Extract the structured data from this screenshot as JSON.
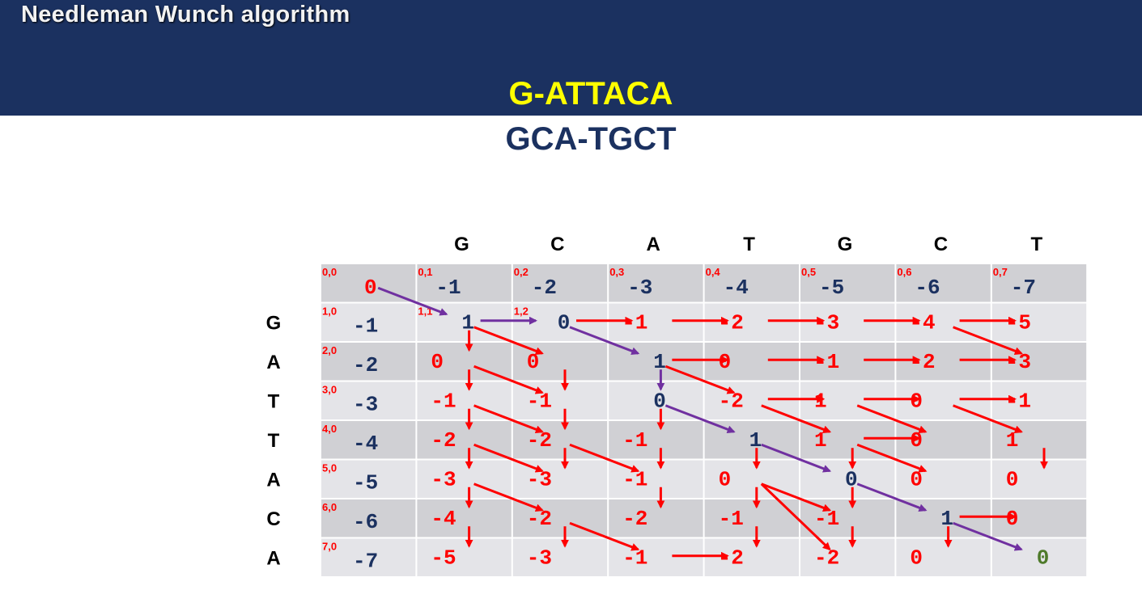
{
  "title": "Needleman Wunch algorithm",
  "alignment": {
    "top": "G-ATTACA",
    "bottom": "GCA-TGCT"
  },
  "matrix": {
    "columns": [
      "G",
      "C",
      "A",
      "T",
      "G",
      "C",
      "T"
    ],
    "rows": [
      "G",
      "A",
      "T",
      "T",
      "A",
      "C",
      "A"
    ],
    "index_labels": [
      "0,0",
      "0,1",
      "0,2",
      "0,3",
      "0,4",
      "0,5",
      "0,6",
      "0,7",
      "1,0",
      "2,0",
      "3,0",
      "4,0",
      "5,0",
      "6,0",
      "7,0",
      "1,1",
      "1,2"
    ],
    "cells": [
      [
        "0",
        "-1",
        "-2",
        "-3",
        "-4",
        "-5",
        "-6",
        "-7"
      ],
      [
        "-1",
        "1",
        "0",
        "-1",
        "-2",
        "-3",
        "-4",
        "-5"
      ],
      [
        "-2",
        "0",
        "0",
        "1",
        "0",
        "-1",
        "-2",
        "-3"
      ],
      [
        "-3",
        "-1",
        "-1",
        "0",
        "-2",
        "1",
        "0",
        "-1"
      ],
      [
        "-4",
        "-2",
        "-2",
        "-1",
        "1",
        "1",
        "0",
        "1"
      ],
      [
        "-5",
        "-3",
        "-3",
        "-1",
        "0",
        "0",
        "0",
        "0"
      ],
      [
        "-6",
        "-4",
        "-2",
        "-2",
        "-1",
        "-1",
        "1",
        "0"
      ],
      [
        "-7",
        "-5",
        "-3",
        "-1",
        "-2",
        "-2",
        "0",
        "0"
      ]
    ],
    "colors": {
      "score_red": "#ff0000",
      "score_navy": "#1b3160",
      "final_green": "#4e7a2a",
      "arrow_red": "#ff0000",
      "traceback_purple": "#7030a0",
      "header_band": "#1b3160",
      "row_even": "#d0d0d4",
      "row_odd": "#e4e4e8"
    }
  }
}
